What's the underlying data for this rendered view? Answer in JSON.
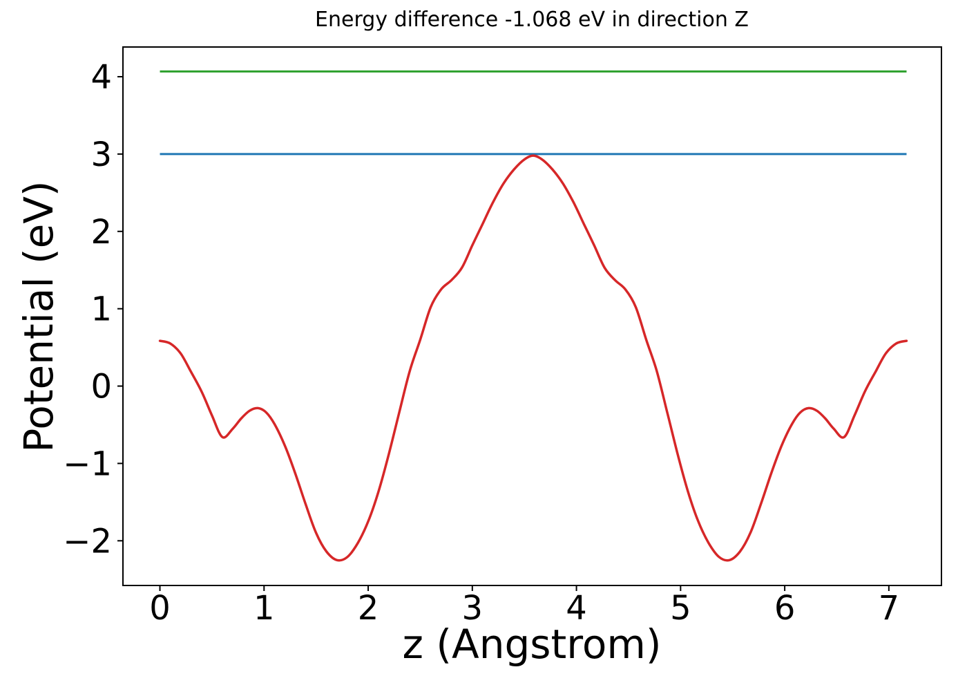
{
  "chart_data": {
    "type": "line",
    "title": "Energy difference -1.068 eV in direction Z",
    "xlabel": "z (Angstrom)",
    "ylabel": "Potential (eV)",
    "xlim": [
      -0.355,
      7.505
    ],
    "ylim": [
      -2.578,
      4.384
    ],
    "x_ticks": [
      0,
      1,
      2,
      3,
      4,
      5,
      6,
      7
    ],
    "y_ticks": [
      -2,
      -1,
      0,
      1,
      2,
      3,
      4
    ],
    "grid": false,
    "legend": "none",
    "axis_color": "#000000",
    "background_color": "#ffffff",
    "series": [
      {
        "name": "green-hline",
        "type": "hline",
        "color": "#2ca02c",
        "y": 4.068,
        "x_range": [
          0.0,
          7.17
        ],
        "line_width": 3
      },
      {
        "name": "blue-hline",
        "type": "hline",
        "color": "#1f77b4",
        "y": 3.0,
        "x_range": [
          0.0,
          7.17
        ],
        "line_width": 3
      },
      {
        "name": "red-potential-curve",
        "type": "curve",
        "color": "#d62728",
        "line_width": 3.5,
        "points": [
          [
            0.0,
            0.585
          ],
          [
            0.1,
            0.55
          ],
          [
            0.2,
            0.42
          ],
          [
            0.3,
            0.18
          ],
          [
            0.4,
            -0.07
          ],
          [
            0.5,
            -0.38
          ],
          [
            0.6,
            -0.66
          ],
          [
            0.7,
            -0.55
          ],
          [
            0.78,
            -0.42
          ],
          [
            0.86,
            -0.32
          ],
          [
            0.94,
            -0.285
          ],
          [
            1.02,
            -0.34
          ],
          [
            1.1,
            -0.49
          ],
          [
            1.2,
            -0.77
          ],
          [
            1.3,
            -1.13
          ],
          [
            1.4,
            -1.53
          ],
          [
            1.5,
            -1.9
          ],
          [
            1.6,
            -2.14
          ],
          [
            1.7,
            -2.25
          ],
          [
            1.8,
            -2.21
          ],
          [
            1.9,
            -2.03
          ],
          [
            2.0,
            -1.75
          ],
          [
            2.1,
            -1.36
          ],
          [
            2.2,
            -0.87
          ],
          [
            2.3,
            -0.33
          ],
          [
            2.4,
            0.2
          ],
          [
            2.5,
            0.6
          ],
          [
            2.6,
            1.02
          ],
          [
            2.7,
            1.25
          ],
          [
            2.8,
            1.37
          ],
          [
            2.9,
            1.53
          ],
          [
            3.0,
            1.82
          ],
          [
            3.1,
            2.1
          ],
          [
            3.2,
            2.38
          ],
          [
            3.3,
            2.62
          ],
          [
            3.4,
            2.8
          ],
          [
            3.5,
            2.93
          ],
          [
            3.585,
            2.98
          ],
          [
            3.67,
            2.93
          ],
          [
            3.77,
            2.8
          ],
          [
            3.87,
            2.62
          ],
          [
            3.97,
            2.38
          ],
          [
            4.07,
            2.1
          ],
          [
            4.17,
            1.82
          ],
          [
            4.27,
            1.53
          ],
          [
            4.37,
            1.37
          ],
          [
            4.47,
            1.25
          ],
          [
            4.57,
            1.02
          ],
          [
            4.67,
            0.6
          ],
          [
            4.77,
            0.2
          ],
          [
            4.87,
            -0.33
          ],
          [
            4.97,
            -0.87
          ],
          [
            5.07,
            -1.36
          ],
          [
            5.17,
            -1.75
          ],
          [
            5.27,
            -2.03
          ],
          [
            5.37,
            -2.21
          ],
          [
            5.47,
            -2.25
          ],
          [
            5.57,
            -2.14
          ],
          [
            5.67,
            -1.9
          ],
          [
            5.77,
            -1.53
          ],
          [
            5.87,
            -1.13
          ],
          [
            5.97,
            -0.77
          ],
          [
            6.07,
            -0.49
          ],
          [
            6.15,
            -0.34
          ],
          [
            6.23,
            -0.285
          ],
          [
            6.31,
            -0.32
          ],
          [
            6.39,
            -0.42
          ],
          [
            6.47,
            -0.55
          ],
          [
            6.57,
            -0.66
          ],
          [
            6.67,
            -0.38
          ],
          [
            6.77,
            -0.07
          ],
          [
            6.87,
            0.18
          ],
          [
            6.97,
            0.42
          ],
          [
            7.07,
            0.55
          ],
          [
            7.17,
            0.585
          ]
        ]
      }
    ]
  }
}
